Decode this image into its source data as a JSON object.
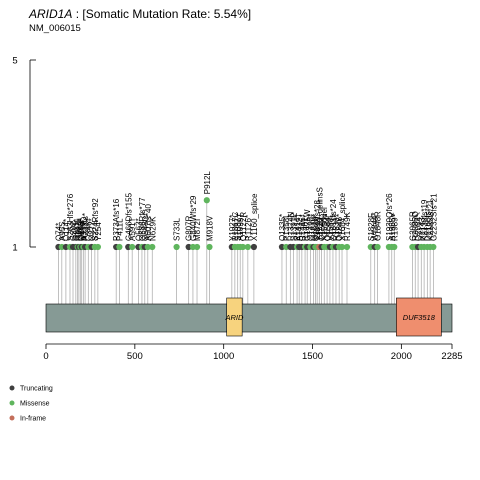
{
  "title": {
    "gene": "ARID1A",
    "rate": " : [Somatic Mutation Rate: 5.54%]",
    "transcript": "NM_006015"
  },
  "colors": {
    "protein_bar": "#869A95",
    "ARID": "#F7D37E",
    "DUF3518": "#EF8E6E",
    "Truncating": "#3F3F3F",
    "Missense": "#5FB55D",
    "In-frame": "#C46F5B",
    "stem": "#A6A6A6"
  },
  "chart_data": {
    "type": "lollipop",
    "protein_length": 2285,
    "xlim": [
      0,
      2285
    ],
    "xticks": [
      "0",
      "500",
      "1000",
      "1500",
      "2000",
      "2285"
    ],
    "ylim": [
      0,
      5
    ],
    "yticks": [
      "1",
      "5"
    ],
    "domains": [
      {
        "name": "ARID",
        "start": 1017,
        "end": 1104
      },
      {
        "name": "DUF3518",
        "start": 1972,
        "end": 2225
      }
    ],
    "legend": [
      {
        "label": "Truncating",
        "color_key": "Truncating"
      },
      {
        "label": "Missense",
        "color_key": "Missense"
      },
      {
        "label": "In-frame",
        "color_key": "In-frame"
      }
    ],
    "mutations": [
      {
        "pos": 70,
        "count": 1,
        "type": "Truncating",
        "label": "Q74*"
      },
      {
        "pos": 89,
        "count": 1,
        "type": "Missense",
        "label": "A95S"
      },
      {
        "pos": 112,
        "count": 1,
        "type": "Truncating",
        "label": "Q114*"
      },
      {
        "pos": 135,
        "count": 1,
        "type": "Missense",
        "label": "S263Hfs*276"
      },
      {
        "pos": 152,
        "count": 1,
        "type": "Truncating",
        "label": "G202"
      },
      {
        "pos": 168,
        "count": 1,
        "type": "Truncating",
        "label": "Q211*"
      },
      {
        "pos": 178,
        "count": 1,
        "type": "Missense",
        "label": "P167L"
      },
      {
        "pos": 185,
        "count": 1,
        "type": "Truncating",
        "label": "Q284*"
      },
      {
        "pos": 193,
        "count": 1,
        "type": "Missense",
        "label": "Q265*"
      },
      {
        "pos": 201,
        "count": 1,
        "type": "Truncating",
        "label": "Q316*"
      },
      {
        "pos": 210,
        "count": 1,
        "type": "Missense",
        "label": "A339D"
      },
      {
        "pos": 220,
        "count": 1,
        "type": "Truncating",
        "label": "P223fs*"
      },
      {
        "pos": 238,
        "count": 1,
        "type": "Missense",
        "label": "Q346*"
      },
      {
        "pos": 257,
        "count": 1,
        "type": "Truncating",
        "label": "Q372*"
      },
      {
        "pos": 275,
        "count": 1,
        "type": "Missense",
        "label": "S224Rfs*92"
      },
      {
        "pos": 292,
        "count": 1,
        "type": "Missense",
        "label": "Y254*"
      },
      {
        "pos": 395,
        "count": 1,
        "type": "Truncating",
        "label": "P373Afs*16"
      },
      {
        "pos": 413,
        "count": 1,
        "type": "Missense",
        "label": "P411L"
      },
      {
        "pos": 463,
        "count": 1,
        "type": "Truncating",
        "label": "G466Dfs*155"
      },
      {
        "pos": 485,
        "count": 1,
        "type": "Missense",
        "label": "A591T"
      },
      {
        "pos": 520,
        "count": 1,
        "type": "Truncating",
        "label": "Q563*"
      },
      {
        "pos": 540,
        "count": 1,
        "type": "Missense",
        "label": "Q586Rfs*77"
      },
      {
        "pos": 556,
        "count": 1,
        "type": "Truncating",
        "label": "Q548fs*"
      },
      {
        "pos": 573,
        "count": 1,
        "type": "Missense",
        "label": "A607fs*40"
      },
      {
        "pos": 598,
        "count": 1,
        "type": "Missense",
        "label": "N629K"
      },
      {
        "pos": 735,
        "count": 1,
        "type": "Missense",
        "label": "S733L"
      },
      {
        "pos": 803,
        "count": 1,
        "type": "Truncating",
        "label": "G807R"
      },
      {
        "pos": 827,
        "count": 1,
        "type": "Missense",
        "label": "G840Wfs*29"
      },
      {
        "pos": 850,
        "count": 1,
        "type": "Missense",
        "label": "M872I"
      },
      {
        "pos": 905,
        "count": 2,
        "type": "Missense",
        "label": "P912L"
      },
      {
        "pos": 920,
        "count": 1,
        "type": "Missense",
        "label": "M918V"
      },
      {
        "pos": 1046,
        "count": 1,
        "type": "Truncating",
        "label": "Y1027*"
      },
      {
        "pos": 1063,
        "count": 1,
        "type": "Missense",
        "label": "R1017C"
      },
      {
        "pos": 1079,
        "count": 1,
        "type": "Missense",
        "label": "S1087Y"
      },
      {
        "pos": 1093,
        "count": 1,
        "type": "Missense",
        "label": "A1099T"
      },
      {
        "pos": 1108,
        "count": 1,
        "type": "Missense",
        "label": "Q1122R"
      },
      {
        "pos": 1136,
        "count": 1,
        "type": "Missense",
        "label": "R1126*"
      },
      {
        "pos": 1170,
        "count": 1,
        "type": "Truncating",
        "label": "X1160_splice"
      },
      {
        "pos": 1328,
        "count": 1,
        "type": "Truncating",
        "label": "Q1335*"
      },
      {
        "pos": 1352,
        "count": 1,
        "type": "Missense",
        "label": "P1358L"
      },
      {
        "pos": 1375,
        "count": 1,
        "type": "Truncating",
        "label": "R1374N"
      },
      {
        "pos": 1392,
        "count": 1,
        "type": "Truncating",
        "label": "S1391P"
      },
      {
        "pos": 1413,
        "count": 1,
        "type": "Missense",
        "label": "R1414*"
      },
      {
        "pos": 1425,
        "count": 1,
        "type": "Truncating",
        "label": "A1432T"
      },
      {
        "pos": 1440,
        "count": 1,
        "type": "Truncating",
        "label": "R1446*"
      },
      {
        "pos": 1458,
        "count": 1,
        "type": "Missense",
        "label": "R1461*"
      },
      {
        "pos": 1470,
        "count": 1,
        "type": "Truncating",
        "label": "G1475W"
      },
      {
        "pos": 1488,
        "count": 1,
        "type": "Missense",
        "label": "Q1490*"
      },
      {
        "pos": 1505,
        "count": 1,
        "type": "Truncating",
        "label": "Q1519*"
      },
      {
        "pos": 1516,
        "count": 1,
        "type": "Missense",
        "label": "Q1530*"
      },
      {
        "pos": 1526,
        "count": 1,
        "type": "Missense",
        "label": "T1512fs*28"
      },
      {
        "pos": 1538,
        "count": 1,
        "type": "In-frame",
        "label": "Y1520_delinsS"
      },
      {
        "pos": 1551,
        "count": 1,
        "type": "Truncating",
        "label": "Q1544*"
      },
      {
        "pos": 1566,
        "count": 1,
        "type": "Missense",
        "label": "X1556del"
      },
      {
        "pos": 1582,
        "count": 1,
        "type": "Missense",
        "label": "Q1584*"
      },
      {
        "pos": 1598,
        "count": 1,
        "type": "Truncating",
        "label": "V1588L"
      },
      {
        "pos": 1615,
        "count": 1,
        "type": "Missense",
        "label": "Q1611fs*24"
      },
      {
        "pos": 1632,
        "count": 1,
        "type": "Truncating",
        "label": "R1630*"
      },
      {
        "pos": 1650,
        "count": 1,
        "type": "Missense",
        "label": "Q1646*"
      },
      {
        "pos": 1666,
        "count": 1,
        "type": "Missense",
        "label": "X1684_splice"
      },
      {
        "pos": 1694,
        "count": 1,
        "type": "Missense",
        "label": "R1749K"
      },
      {
        "pos": 1828,
        "count": 1,
        "type": "Missense",
        "label": "S1828F"
      },
      {
        "pos": 1850,
        "count": 1,
        "type": "Truncating",
        "label": "W1844*"
      },
      {
        "pos": 1866,
        "count": 1,
        "type": "Missense",
        "label": "G1848R"
      },
      {
        "pos": 1930,
        "count": 1,
        "type": "Missense",
        "label": "S1930Qfs*26"
      },
      {
        "pos": 1946,
        "count": 1,
        "type": "Missense",
        "label": "A1955V"
      },
      {
        "pos": 1960,
        "count": 1,
        "type": "Missense",
        "label": "R1989*"
      },
      {
        "pos": 2062,
        "count": 1,
        "type": "Missense",
        "label": "G2065R"
      },
      {
        "pos": 2078,
        "count": 1,
        "type": "Missense",
        "label": "R2086Q"
      },
      {
        "pos": 2094,
        "count": 1,
        "type": "Truncating",
        "label": "Q2084*"
      },
      {
        "pos": 2112,
        "count": 1,
        "type": "Missense",
        "label": "R2143"
      },
      {
        "pos": 2128,
        "count": 1,
        "type": "Missense",
        "label": "K2130fs*19"
      },
      {
        "pos": 2146,
        "count": 1,
        "type": "Missense",
        "label": "D2160fs*"
      },
      {
        "pos": 2162,
        "count": 1,
        "type": "Missense",
        "label": "K2185fs*21"
      },
      {
        "pos": 2180,
        "count": 1,
        "type": "Missense",
        "label": "G2232Sfs*21"
      }
    ]
  }
}
